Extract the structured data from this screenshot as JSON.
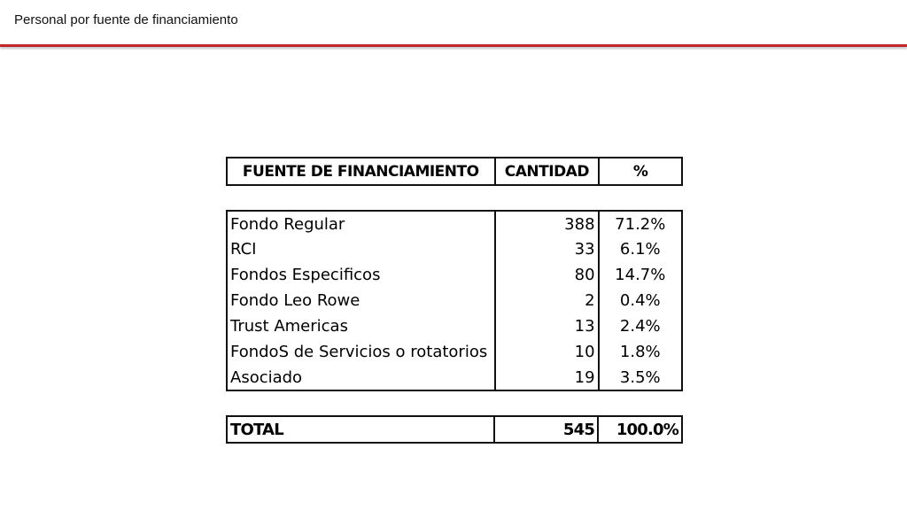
{
  "slide": {
    "title": "Personal por fuente de financiamiento",
    "accent_color": "#c0262a"
  },
  "table": {
    "headers": {
      "source": "FUENTE DE FINANCIAMIENTO",
      "quantity": "CANTIDAD",
      "percent": "%"
    },
    "rows": [
      {
        "source": "Fondo Regular",
        "quantity": "388",
        "percent": "71.2%"
      },
      {
        "source": "RCI",
        "quantity": "33",
        "percent": "6.1%"
      },
      {
        "source": "Fondos Especificos",
        "quantity": "80",
        "percent": "14.7%"
      },
      {
        "source": "Fondo Leo Rowe",
        "quantity": "2",
        "percent": "0.4%"
      },
      {
        "source": "Trust Americas",
        "quantity": "13",
        "percent": "2.4%"
      },
      {
        "source": "FondoS de Servicios o rotatorios",
        "quantity": "10",
        "percent": "1.8%"
      },
      {
        "source": "Asociado",
        "quantity": "19",
        "percent": "3.5%"
      }
    ],
    "total": {
      "label": "TOTAL",
      "quantity": "545",
      "percent": "100.0%"
    }
  }
}
